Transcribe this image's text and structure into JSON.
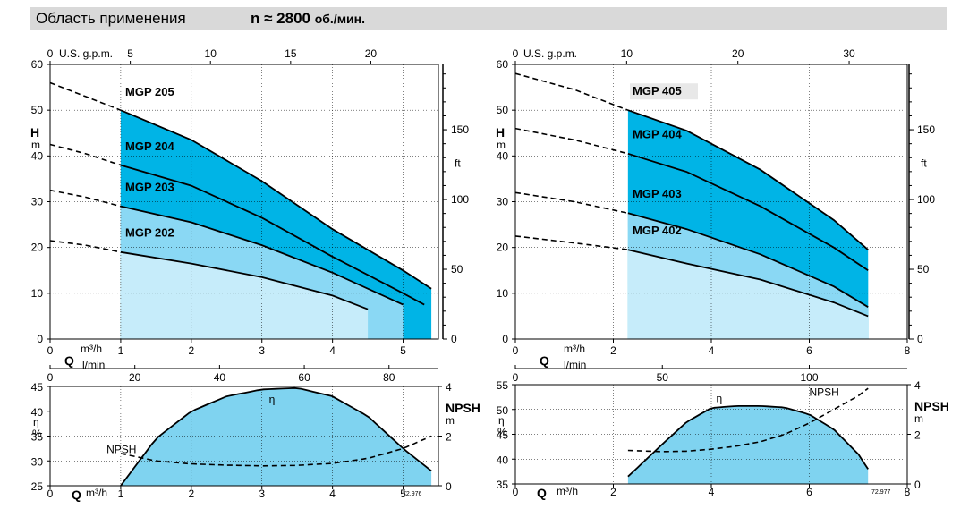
{
  "header": {
    "title": "Область применения",
    "speed_prefix": "n ≈ 2800",
    "speed_unit": "об./мин."
  },
  "colors": {
    "band_dark": "#00b4e6",
    "band_mid": "#8ad8f4",
    "band_light": "#c6ecfa",
    "efficiency_fill": "#7fd3f0",
    "banner_bg": "#d9d9d9"
  },
  "chart_data": [
    {
      "id": "mgp200-head",
      "type": "area",
      "x_unit": "m³/h",
      "xlim": [
        0,
        5.5
      ],
      "ylim": [
        0,
        60
      ],
      "yticks": [
        0,
        10,
        20,
        30,
        40,
        50,
        60
      ],
      "xticks": [
        0,
        1,
        2,
        3,
        4,
        5
      ],
      "ylabel": "H",
      "ylabel_unit": "m",
      "xlabel": "Q",
      "top_scale": {
        "label": "U.S. g.p.m.",
        "ticks": [
          0,
          5,
          10,
          15,
          20
        ],
        "per_m3h": 4.4029
      },
      "mid_scale": {
        "label": "l/min",
        "ticks": [
          0,
          20,
          40,
          60,
          80
        ],
        "per_m3h": 16.6667
      },
      "right_scale": {
        "label": "ft",
        "ticks": [
          0,
          50,
          100,
          150
        ],
        "per_m": 3.2808
      },
      "range_start": 1.0,
      "series": [
        {
          "name": "MGP 202",
          "dashed_x": [
            0,
            0.5,
            1.0
          ],
          "dashed_y": [
            21.5,
            20.5,
            19.0
          ],
          "x": [
            1.0,
            2.0,
            3.0,
            4.0,
            4.5
          ],
          "y": [
            19.0,
            16.5,
            13.5,
            9.5,
            6.5
          ],
          "range_end": 4.5
        },
        {
          "name": "MGP 203",
          "dashed_x": [
            0,
            0.5,
            1.0
          ],
          "dashed_y": [
            32.5,
            31.0,
            29.0
          ],
          "x": [
            1.0,
            2.0,
            3.0,
            4.0,
            5.0
          ],
          "y": [
            29.0,
            25.5,
            20.5,
            14.5,
            7.5
          ],
          "range_end": 5.0
        },
        {
          "name": "MGP 204",
          "dashed_x": [
            0,
            0.5,
            1.0
          ],
          "dashed_y": [
            42.5,
            40.5,
            38.0
          ],
          "x": [
            1.0,
            2.0,
            3.0,
            4.0,
            5.0,
            5.3
          ],
          "y": [
            38.0,
            33.5,
            26.5,
            18.0,
            10.0,
            7.5
          ],
          "range_end": 5.3
        },
        {
          "name": "MGP 205",
          "dashed_x": [
            0,
            0.5,
            1.0
          ],
          "dashed_y": [
            56.0,
            53.0,
            50.0
          ],
          "x": [
            1.0,
            2.0,
            3.0,
            4.0,
            5.0,
            5.4
          ],
          "y": [
            50.0,
            43.5,
            34.5,
            24.0,
            15.0,
            11.0
          ],
          "range_end": 5.4
        }
      ]
    },
    {
      "id": "mgp200-efficiency",
      "type": "area",
      "x_unit": "m³/h",
      "xlim": [
        0,
        5.5
      ],
      "ylim": [
        25,
        45
      ],
      "yticks": [
        25,
        30,
        35,
        40,
        45
      ],
      "xticks": [
        0,
        1,
        2,
        3,
        4,
        5
      ],
      "ylabel": "η",
      "ylabel_unit": "%",
      "xlabel": "Q",
      "right_label": "NPSH",
      "right_label_unit": "m",
      "right_ylim": [
        0,
        4
      ],
      "right_ticks": [
        0,
        2,
        4
      ],
      "code": "72.976",
      "series": [
        {
          "name": "η",
          "x": [
            1.0,
            1.5,
            2.0,
            2.5,
            3.0,
            3.5,
            4.0,
            4.5,
            5.0,
            5.4
          ],
          "y": [
            25.0,
            34.5,
            40.0,
            43.0,
            44.4,
            44.7,
            43.0,
            39.0,
            32.5,
            28.0
          ]
        },
        {
          "name": "NPSH",
          "dashed": true,
          "x": [
            1.0,
            1.5,
            2.0,
            2.5,
            3.0,
            3.5,
            4.0,
            4.5,
            5.0,
            5.4
          ],
          "y": [
            1.3,
            1.0,
            0.88,
            0.83,
            0.8,
            0.82,
            0.9,
            1.1,
            1.5,
            2.0
          ]
        }
      ]
    },
    {
      "id": "mgp400-head",
      "type": "area",
      "x_unit": "m³/h",
      "xlim": [
        0,
        8
      ],
      "ylim": [
        0,
        60
      ],
      "yticks": [
        0,
        10,
        20,
        30,
        40,
        50,
        60
      ],
      "xticks": [
        0,
        2,
        4,
        6,
        8
      ],
      "ylabel": "H",
      "ylabel_unit": "m",
      "xlabel": "Q",
      "top_scale": {
        "label": "U.S. g.p.m.",
        "ticks": [
          0,
          10,
          20,
          30
        ],
        "per_m3h": 4.4029
      },
      "mid_scale": {
        "label": "l/min",
        "ticks": [
          0,
          50,
          100
        ],
        "per_m3h": 16.6667
      },
      "right_scale": {
        "label": "ft",
        "ticks": [
          0,
          50,
          100,
          150
        ],
        "per_m": 3.2808
      },
      "range_start": 2.3,
      "series": [
        {
          "name": "MGP 402",
          "dashed_x": [
            0,
            1.2,
            2.3
          ],
          "dashed_y": [
            22.5,
            21.0,
            19.5
          ],
          "x": [
            2.3,
            3.5,
            5.0,
            6.5,
            7.2
          ],
          "y": [
            19.5,
            16.5,
            13.0,
            8.0,
            5.0
          ],
          "range_end": 7.2
        },
        {
          "name": "MGP 403",
          "dashed_x": [
            0,
            1.2,
            2.3
          ],
          "dashed_y": [
            32.0,
            30.0,
            27.5
          ],
          "x": [
            2.3,
            3.5,
            5.0,
            6.5,
            7.2
          ],
          "y": [
            27.5,
            24.0,
            18.5,
            11.5,
            7.0
          ],
          "range_end": 7.2
        },
        {
          "name": "MGP 404",
          "dashed_x": [
            0,
            1.2,
            2.3
          ],
          "dashed_y": [
            46.0,
            43.5,
            40.5
          ],
          "x": [
            2.3,
            3.5,
            5.0,
            6.5,
            7.2
          ],
          "y": [
            40.5,
            36.5,
            29.0,
            20.0,
            15.0
          ],
          "range_end": 7.2
        },
        {
          "name": "MGP 405",
          "dashed_x": [
            0,
            1.2,
            2.3
          ],
          "dashed_y": [
            58.0,
            54.5,
            50.0
          ],
          "x": [
            2.3,
            3.5,
            5.0,
            6.5,
            7.2
          ],
          "y": [
            50.0,
            45.5,
            37.0,
            26.0,
            19.5
          ],
          "range_end": 7.2
        }
      ]
    },
    {
      "id": "mgp400-efficiency",
      "type": "area",
      "x_unit": "m³/h",
      "xlim": [
        0,
        8
      ],
      "ylim": [
        35,
        55
      ],
      "yticks": [
        35,
        40,
        45,
        50,
        55
      ],
      "xticks": [
        0,
        2,
        4,
        6,
        8
      ],
      "ylabel": "η",
      "ylabel_unit": "%",
      "xlabel": "Q",
      "right_label": "NPSH",
      "right_label_unit": "m",
      "right_ylim": [
        0,
        4
      ],
      "right_ticks": [
        0,
        2,
        4
      ],
      "code": "72.977",
      "series": [
        {
          "name": "η",
          "x": [
            2.3,
            3.0,
            3.5,
            4.0,
            4.5,
            5.0,
            5.5,
            6.0,
            6.5,
            7.0,
            7.2
          ],
          "y": [
            36.5,
            43.0,
            47.5,
            50.3,
            50.7,
            50.7,
            50.4,
            49.0,
            46.0,
            41.0,
            38.0
          ]
        },
        {
          "name": "NPSH",
          "dashed": true,
          "x": [
            2.3,
            3.0,
            3.5,
            4.0,
            4.5,
            5.0,
            5.5,
            6.0,
            6.5,
            7.0,
            7.2
          ],
          "y": [
            1.35,
            1.3,
            1.32,
            1.4,
            1.52,
            1.7,
            2.0,
            2.45,
            3.0,
            3.55,
            3.85
          ]
        }
      ]
    }
  ]
}
